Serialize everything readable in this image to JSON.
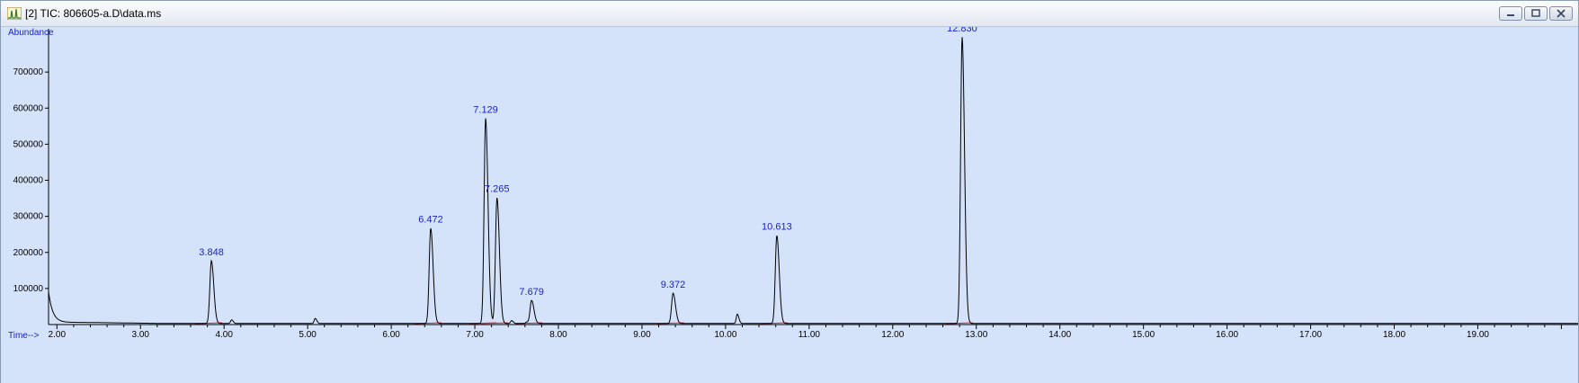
{
  "window": {
    "title": "[2] TIC: 806605-a.D\\data.ms",
    "controls": {
      "minimize": "minimize-icon",
      "restore": "restore-icon",
      "close": "close-icon"
    }
  },
  "colors": {
    "plot_bg": "#d5e3fa",
    "trace": "#000000",
    "peak_label": "#1a22c8",
    "axis_label": "#1a22c8",
    "baseline": "#e0203a"
  },
  "chart_data": {
    "type": "line",
    "title": "",
    "xlabel": "Time-->",
    "ylabel": "Abundance",
    "xlim": [
      1.9,
      20.2
    ],
    "ylim": [
      0,
      820000
    ],
    "x_ticks": [
      "2.00",
      "3.00",
      "4.00",
      "5.00",
      "6.00",
      "7.00",
      "8.00",
      "9.00",
      "10.00",
      "11.00",
      "12.00",
      "13.00",
      "14.00",
      "15.00",
      "16.00",
      "17.00",
      "18.00",
      "19.00"
    ],
    "y_ticks": [
      "100000",
      "200000",
      "300000",
      "400000",
      "500000",
      "600000",
      "700000"
    ],
    "grid": false,
    "series": [
      {
        "labeled_peaks": [
          {
            "label": "3.848",
            "x": 3.848,
            "y": 180000
          },
          {
            "label": "6.472",
            "x": 6.472,
            "y": 270000
          },
          {
            "label": "7.129",
            "x": 7.129,
            "y": 575000
          },
          {
            "label": "7.265",
            "x": 7.265,
            "y": 355000
          },
          {
            "label": "7.679",
            "x": 7.679,
            "y": 70000
          },
          {
            "label": "9.372",
            "x": 9.372,
            "y": 90000
          },
          {
            "label": "10.613",
            "x": 10.613,
            "y": 250000
          },
          {
            "label": "12.830",
            "x": 12.83,
            "y": 800000
          }
        ],
        "minor_peaks": [
          {
            "x": 4.09,
            "y": 16000
          },
          {
            "x": 5.09,
            "y": 20000
          },
          {
            "x": 7.44,
            "y": 14000
          },
          {
            "x": 7.62,
            "y": 10000
          },
          {
            "x": 8.85,
            "y": 6000
          },
          {
            "x": 10.14,
            "y": 32000
          }
        ]
      }
    ]
  }
}
